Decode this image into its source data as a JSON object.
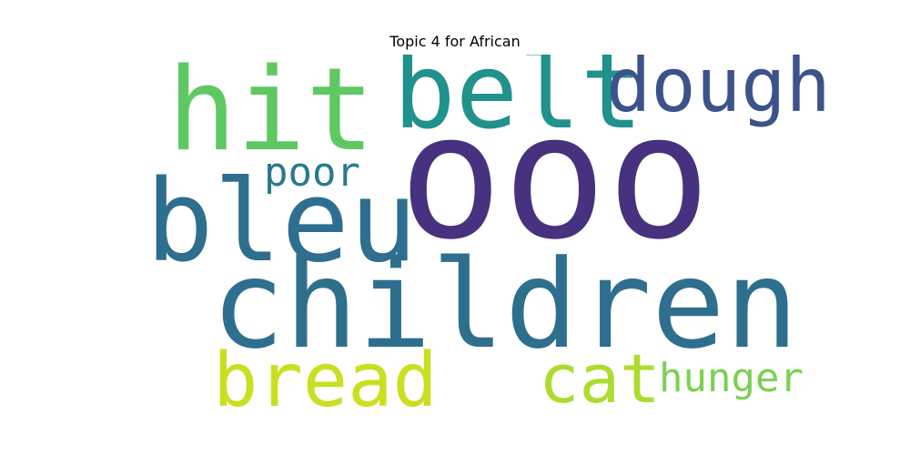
{
  "title": "Topic 4 for African",
  "words": [
    {
      "text": "ooo",
      "color": "#46327e"
    },
    {
      "text": "children",
      "color": "#2e6f8e"
    },
    {
      "text": "bleu",
      "color": "#2e6e8e"
    },
    {
      "text": "hit",
      "color": "#5ec962"
    },
    {
      "text": "belt",
      "color": "#21918c"
    },
    {
      "text": "dough",
      "color": "#3b528b"
    },
    {
      "text": "bread",
      "color": "#c8e020"
    },
    {
      "text": "cat",
      "color": "#addc30"
    },
    {
      "text": "hunger",
      "color": "#7ad151"
    },
    {
      "text": "poor",
      "color": "#2a788e"
    }
  ]
}
